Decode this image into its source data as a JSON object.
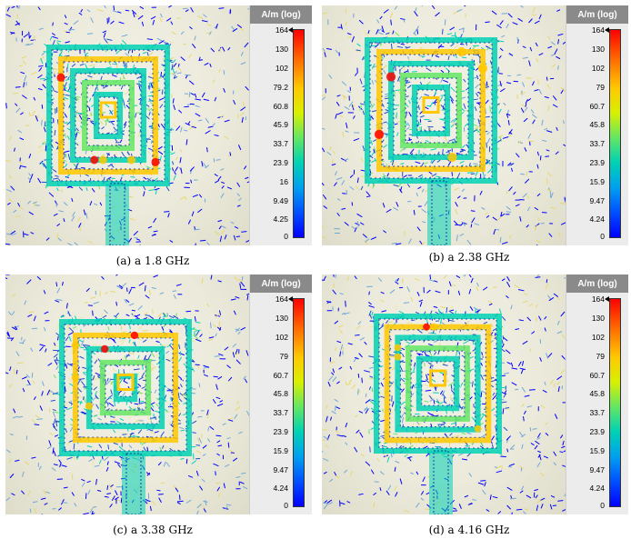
{
  "panels": [
    {
      "legend_title": "A/m (log)",
      "ticks": [
        "164",
        "130",
        "102",
        "79.2",
        "60.8",
        "45.9",
        "33.7",
        "23.9",
        "16",
        "9.49",
        "4.25",
        "0"
      ],
      "caption": "(a)  a 1.8 GHz"
    },
    {
      "legend_title": "A/m (log)",
      "ticks": [
        "164",
        "130",
        "102",
        "79",
        "60.7",
        "45.8",
        "33.7",
        "23.9",
        "15.9",
        "9.47",
        "4.24",
        "0"
      ],
      "caption": "(b)  a 2.38 GHz"
    },
    {
      "legend_title": "A/m (log)",
      "ticks": [
        "164",
        "130",
        "102",
        "79",
        "60.7",
        "45.8",
        "33.7",
        "23.9",
        "15.9",
        "9.47",
        "4.24",
        "0"
      ],
      "caption": "(c)  a 3.38 GHz"
    },
    {
      "legend_title": "A/m (log)",
      "ticks": [
        "164",
        "130",
        "102",
        "79",
        "60.7",
        "45.8",
        "33.7",
        "23.9",
        "15.9",
        "9.47",
        "4.24",
        "0"
      ],
      "caption": "(d)  a 4.16 GHz"
    }
  ],
  "colors": {
    "high": "#ff0000",
    "mid_high": "#ffc800",
    "mid": "#64e664",
    "mid_low": "#00d2b4",
    "low": "#0000ff"
  }
}
